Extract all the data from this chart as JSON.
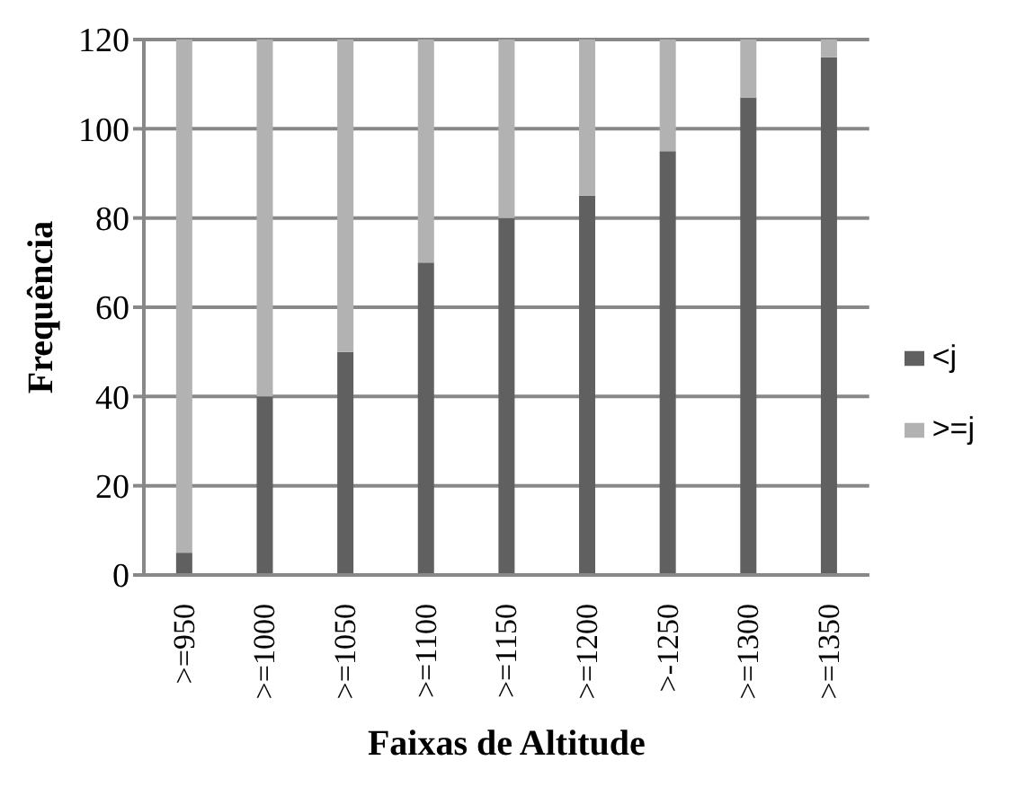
{
  "chart_data": {
    "type": "bar",
    "xlabel": "Faixas de Altitude",
    "ylabel": "Frequência",
    "categories": [
      ">=950",
      ">=1000",
      ">=1050",
      ">=1100",
      ">=1150",
      ">=1200",
      ">-1250",
      ">=1300",
      ">=1350"
    ],
    "stacked": true,
    "series": [
      {
        "name": "<j",
        "color": "#606060",
        "values": [
          5,
          40,
          50,
          70,
          80,
          85,
          95,
          107,
          116
        ]
      },
      {
        "name": ">=j",
        "color": "#b2b2b2",
        "values": [
          115,
          80,
          70,
          50,
          40,
          35,
          25,
          13,
          4
        ]
      }
    ],
    "ylim": [
      0,
      120
    ],
    "yticks": [
      0,
      20,
      40,
      60,
      80,
      100,
      120
    ],
    "grid": "y",
    "legend": "right"
  }
}
